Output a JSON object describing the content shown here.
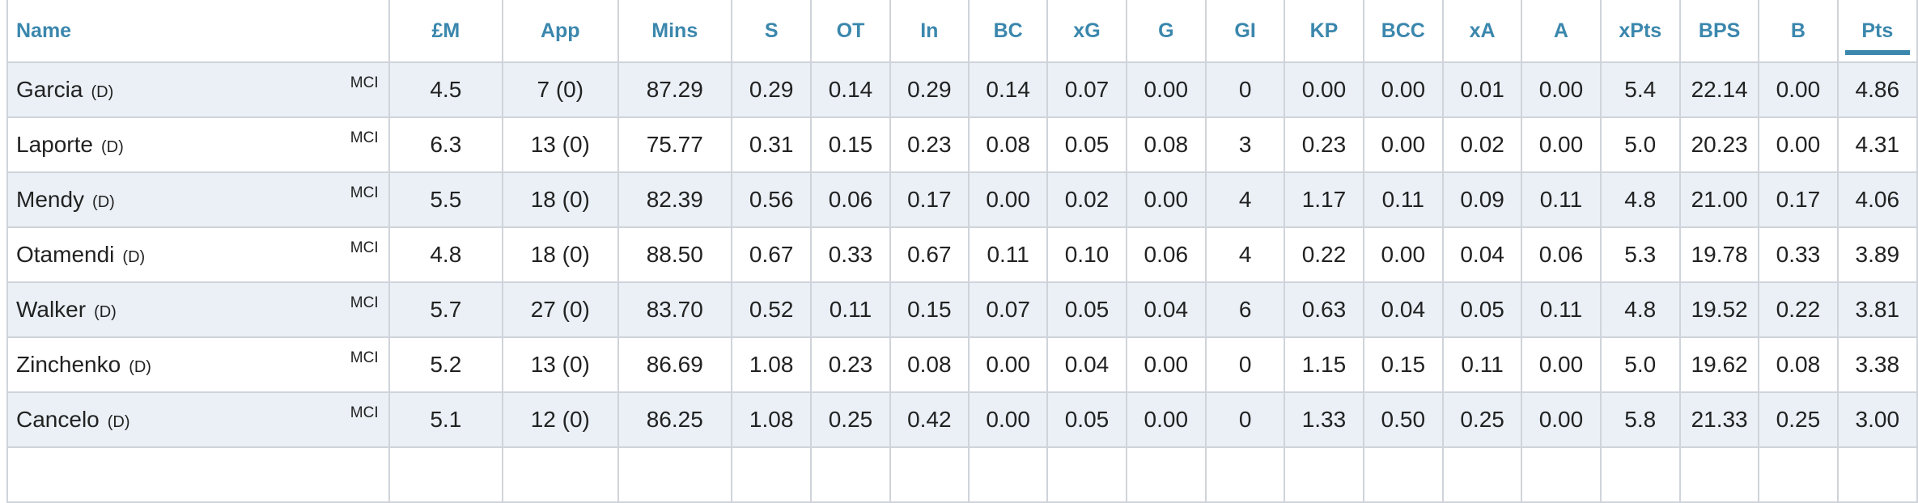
{
  "columns": [
    "Name",
    "£M",
    "App",
    "Mins",
    "S",
    "OT",
    "In",
    "BC",
    "xG",
    "G",
    "GI",
    "KP",
    "BCC",
    "xA",
    "A",
    "xPts",
    "BPS",
    "B",
    "Pts"
  ],
  "sorted_column": "Pts",
  "rows": [
    {
      "name": "Garcia",
      "pos": "(D)",
      "team": "MCI",
      "values": [
        "4.5",
        "7 (0)",
        "87.29",
        "0.29",
        "0.14",
        "0.29",
        "0.14",
        "0.07",
        "0.00",
        "0",
        "0.00",
        "0.00",
        "0.01",
        "0.00",
        "5.4",
        "22.14",
        "0.00",
        "4.86"
      ]
    },
    {
      "name": "Laporte",
      "pos": "(D)",
      "team": "MCI",
      "values": [
        "6.3",
        "13 (0)",
        "75.77",
        "0.31",
        "0.15",
        "0.23",
        "0.08",
        "0.05",
        "0.08",
        "3",
        "0.23",
        "0.00",
        "0.02",
        "0.00",
        "5.0",
        "20.23",
        "0.00",
        "4.31"
      ]
    },
    {
      "name": "Mendy",
      "pos": "(D)",
      "team": "MCI",
      "values": [
        "5.5",
        "18 (0)",
        "82.39",
        "0.56",
        "0.06",
        "0.17",
        "0.00",
        "0.02",
        "0.00",
        "4",
        "1.17",
        "0.11",
        "0.09",
        "0.11",
        "4.8",
        "21.00",
        "0.17",
        "4.06"
      ]
    },
    {
      "name": "Otamendi",
      "pos": "(D)",
      "team": "MCI",
      "values": [
        "4.8",
        "18 (0)",
        "88.50",
        "0.67",
        "0.33",
        "0.67",
        "0.11",
        "0.10",
        "0.06",
        "4",
        "0.22",
        "0.00",
        "0.04",
        "0.06",
        "5.3",
        "19.78",
        "0.33",
        "3.89"
      ]
    },
    {
      "name": "Walker",
      "pos": "(D)",
      "team": "MCI",
      "values": [
        "5.7",
        "27 (0)",
        "83.70",
        "0.52",
        "0.11",
        "0.15",
        "0.07",
        "0.05",
        "0.04",
        "6",
        "0.63",
        "0.04",
        "0.05",
        "0.11",
        "4.8",
        "19.52",
        "0.22",
        "3.81"
      ]
    },
    {
      "name": "Zinchenko",
      "pos": "(D)",
      "team": "MCI",
      "values": [
        "5.2",
        "13 (0)",
        "86.69",
        "1.08",
        "0.23",
        "0.08",
        "0.00",
        "0.04",
        "0.00",
        "0",
        "1.15",
        "0.15",
        "0.11",
        "0.00",
        "5.0",
        "19.62",
        "0.08",
        "3.38"
      ]
    },
    {
      "name": "Cancelo",
      "pos": "(D)",
      "team": "MCI",
      "values": [
        "5.1",
        "12 (0)",
        "86.25",
        "1.08",
        "0.25",
        "0.42",
        "0.00",
        "0.05",
        "0.00",
        "0",
        "1.33",
        "0.50",
        "0.25",
        "0.00",
        "5.8",
        "21.33",
        "0.25",
        "3.00"
      ]
    },
    {
      "name": "",
      "pos": "",
      "team": "",
      "values": [
        "",
        "",
        "",
        "",
        "",
        "",
        "",
        "",
        "",
        "",
        "",
        "",
        "",
        "",
        "",
        "",
        "",
        ""
      ]
    }
  ]
}
